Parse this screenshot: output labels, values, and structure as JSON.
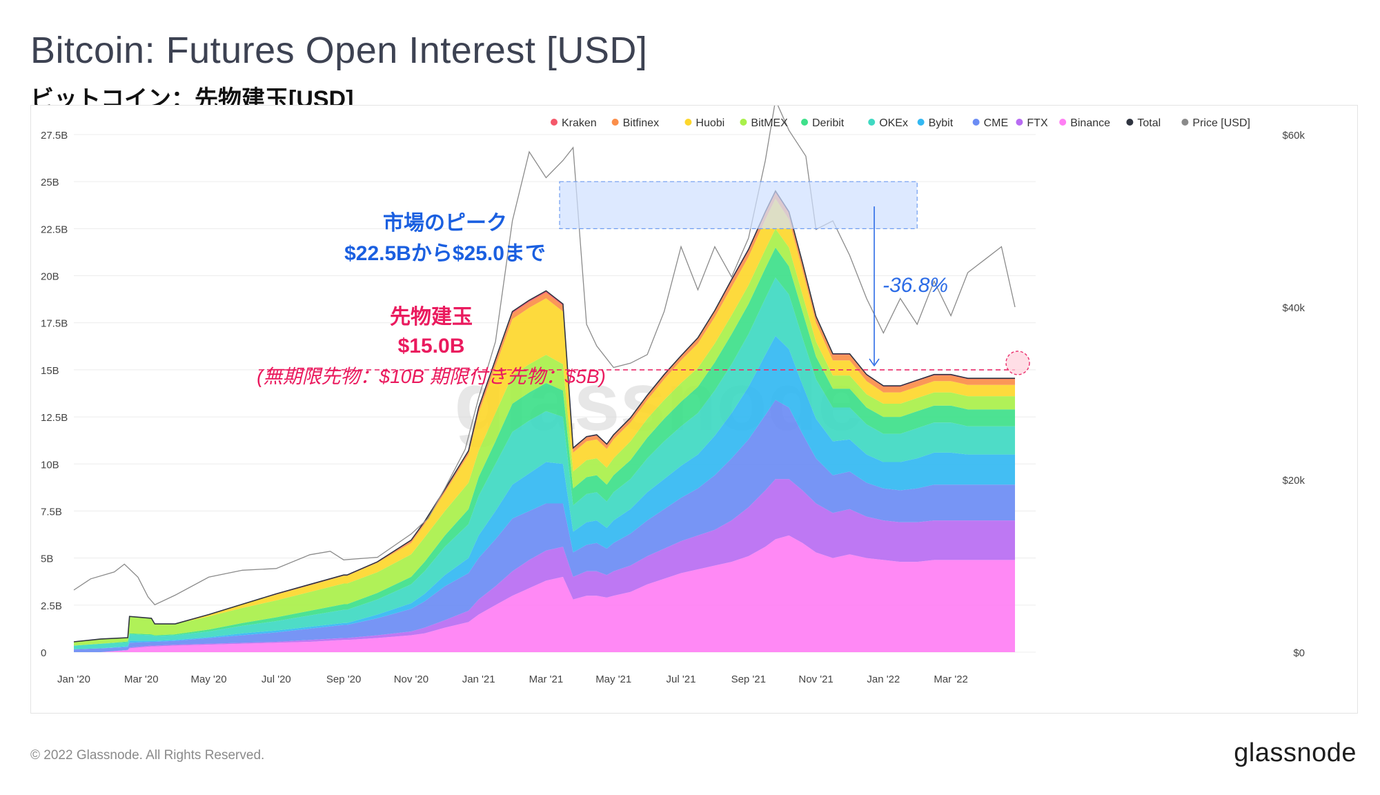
{
  "header": {
    "title": "Bitcoin: Futures Open Interest [USD]",
    "subtitle": "ビットコイン：先物建玉[USD]"
  },
  "footer": {
    "copyright": "© 2022 Glassnode. All Rights Reserved.",
    "logo": "glassnode"
  },
  "watermark": "glassnode",
  "chart_data": {
    "type": "area",
    "stacked": true,
    "title": "Bitcoin: Futures Open Interest [USD]",
    "subtitle": "ビットコイン：先物建玉[USD]",
    "x_ticks": [
      "Jan '20",
      "Mar '20",
      "May '20",
      "Jul '20",
      "Sep '20",
      "Nov '20",
      "Jan '21",
      "Mar '21",
      "May '21",
      "Jul '21",
      "Sep '21",
      "Nov '21",
      "Jan '22",
      "Mar '22"
    ],
    "x_range_months": [
      0,
      27.9
    ],
    "y_left": {
      "ticks": [
        "0",
        "2.5B",
        "5B",
        "7.5B",
        "10B",
        "12.5B",
        "15B",
        "17.5B",
        "20B",
        "22.5B",
        "25B",
        "27.5B"
      ],
      "range": [
        0,
        27.5
      ],
      "unit": "B USD"
    },
    "y_right": {
      "ticks": [
        "$0",
        "$20k",
        "$40k",
        "$60k"
      ],
      "range": [
        0,
        60000
      ],
      "unit": "USD"
    },
    "legend": [
      {
        "name": "Kraken",
        "color": "#f4586a"
      },
      {
        "name": "Bitfinex",
        "color": "#fb8e4a"
      },
      {
        "name": "Huobi",
        "color": "#fdd72c"
      },
      {
        "name": "BitMEX",
        "color": "#a9f04a"
      },
      {
        "name": "Deribit",
        "color": "#3ee08a"
      },
      {
        "name": "OKEx",
        "color": "#3fd9c2"
      },
      {
        "name": "Bybit",
        "color": "#33b8f2"
      },
      {
        "name": "CME",
        "color": "#6b8cf4"
      },
      {
        "name": "FTX",
        "color": "#b86cf2"
      },
      {
        "name": "Binance",
        "color": "#ff7ff4"
      },
      {
        "name": "Total",
        "color": "#2f3440"
      },
      {
        "name": "Price [USD]",
        "color": "#8a8a8a"
      }
    ],
    "x_months": [
      0,
      0.8,
      1.6,
      1.65,
      2.3,
      2.4,
      3,
      4,
      5,
      6,
      7,
      8,
      8.1,
      9,
      10,
      10.4,
      11,
      11.7,
      12,
      12.5,
      13,
      13.5,
      14,
      14.5,
      14.8,
      15.2,
      15.5,
      15.8,
      16,
      16.5,
      17,
      17.5,
      18,
      18.5,
      19,
      19.5,
      20,
      20.5,
      20.8,
      21.2,
      21.6,
      22,
      22.5,
      23,
      23.5,
      24,
      24.5,
      25,
      25.5,
      26,
      26.5,
      27,
      27.5,
      27.9
    ],
    "series": [
      {
        "name": "Binance",
        "values": [
          0,
          0,
          0.1,
          0.2,
          0.3,
          0.3,
          0.35,
          0.4,
          0.45,
          0.5,
          0.55,
          0.65,
          0.65,
          0.75,
          0.9,
          1.0,
          1.3,
          1.6,
          2.0,
          2.5,
          3.0,
          3.4,
          3.8,
          4.0,
          2.8,
          3.0,
          3.0,
          2.9,
          3.0,
          3.2,
          3.6,
          3.9,
          4.2,
          4.4,
          4.6,
          4.8,
          5.1,
          5.6,
          6.0,
          6.2,
          5.8,
          5.3,
          5.0,
          5.2,
          5.0,
          4.9,
          4.8,
          4.8,
          4.9,
          4.9,
          4.9,
          4.9,
          4.9,
          4.9
        ]
      },
      {
        "name": "FTX",
        "values": [
          0,
          0,
          0.02,
          0.05,
          0.05,
          0.05,
          0.05,
          0.05,
          0.05,
          0.05,
          0.1,
          0.1,
          0.1,
          0.15,
          0.2,
          0.3,
          0.4,
          0.6,
          0.8,
          1.0,
          1.3,
          1.5,
          1.6,
          1.6,
          1.2,
          1.3,
          1.3,
          1.2,
          1.3,
          1.4,
          1.5,
          1.6,
          1.7,
          1.8,
          1.9,
          2.2,
          2.6,
          3.0,
          3.2,
          3.0,
          2.8,
          2.6,
          2.4,
          2.4,
          2.2,
          2.1,
          2.1,
          2.1,
          2.1,
          2.1,
          2.1,
          2.1,
          2.1,
          2.1
        ]
      },
      {
        "name": "CME",
        "values": [
          0.15,
          0.2,
          0.15,
          0.25,
          0.2,
          0.2,
          0.2,
          0.3,
          0.4,
          0.5,
          0.6,
          0.7,
          0.7,
          0.9,
          1.2,
          1.4,
          1.8,
          2.0,
          2.2,
          2.5,
          2.8,
          2.6,
          2.5,
          2.3,
          1.3,
          1.4,
          1.5,
          1.4,
          1.5,
          1.7,
          1.9,
          2.1,
          2.3,
          2.5,
          2.9,
          3.3,
          3.6,
          4.0,
          4.2,
          3.8,
          3.0,
          2.4,
          2.0,
          2.0,
          1.8,
          1.7,
          1.7,
          1.8,
          1.9,
          1.9,
          1.9,
          1.9,
          1.9,
          1.9
        ]
      },
      {
        "name": "Bybit",
        "values": [
          0,
          0,
          0.05,
          0.1,
          0.05,
          0.05,
          0.05,
          0.05,
          0.1,
          0.1,
          0.1,
          0.1,
          0.1,
          0.2,
          0.3,
          0.4,
          0.6,
          0.8,
          1.2,
          1.5,
          1.8,
          2.0,
          2.2,
          2.1,
          1.1,
          1.2,
          1.2,
          1.1,
          1.2,
          1.3,
          1.5,
          1.6,
          1.7,
          1.8,
          2.1,
          2.4,
          2.8,
          3.2,
          3.4,
          3.1,
          2.6,
          2.1,
          1.8,
          1.7,
          1.5,
          1.4,
          1.5,
          1.6,
          1.7,
          1.7,
          1.6,
          1.6,
          1.6,
          1.6
        ]
      },
      {
        "name": "OKEx",
        "values": [
          0.2,
          0.25,
          0.2,
          0.35,
          0.3,
          0.25,
          0.25,
          0.3,
          0.4,
          0.5,
          0.6,
          0.7,
          0.7,
          0.8,
          1.0,
          1.2,
          1.5,
          1.8,
          2.1,
          2.5,
          2.8,
          2.8,
          2.7,
          2.5,
          1.4,
          1.5,
          1.5,
          1.4,
          1.5,
          1.6,
          1.8,
          2.0,
          2.1,
          2.2,
          2.4,
          2.6,
          2.8,
          3.0,
          3.1,
          2.9,
          2.5,
          2.1,
          1.8,
          1.7,
          1.6,
          1.5,
          1.5,
          1.6,
          1.6,
          1.6,
          1.5,
          1.5,
          1.5,
          1.5
        ]
      },
      {
        "name": "Deribit",
        "values": [
          0,
          0,
          0.05,
          0.05,
          0.05,
          0.05,
          0.05,
          0.1,
          0.15,
          0.2,
          0.25,
          0.3,
          0.3,
          0.35,
          0.4,
          0.5,
          0.6,
          0.8,
          1.0,
          1.2,
          1.5,
          1.5,
          1.5,
          1.4,
          0.9,
          0.9,
          0.9,
          0.9,
          0.9,
          1.0,
          1.1,
          1.2,
          1.3,
          1.4,
          1.5,
          1.6,
          1.6,
          1.6,
          1.6,
          1.5,
          1.4,
          1.2,
          1.0,
          1.0,
          0.9,
          0.9,
          0.9,
          0.9,
          0.9,
          0.9,
          0.9,
          0.9,
          0.9,
          0.9
        ]
      },
      {
        "name": "BitMEX",
        "values": [
          0.2,
          0.25,
          0.2,
          0.9,
          0.85,
          0.6,
          0.55,
          0.7,
          0.8,
          0.9,
          1.0,
          1.1,
          1.1,
          1.1,
          1.2,
          1.3,
          1.3,
          1.4,
          1.4,
          1.5,
          1.5,
          1.5,
          1.5,
          1.4,
          0.9,
          0.9,
          0.9,
          0.9,
          0.9,
          1.0,
          1.0,
          1.0,
          1.0,
          1.0,
          1.0,
          1.0,
          1.0,
          1.0,
          1.0,
          1.0,
          0.9,
          0.8,
          0.7,
          0.7,
          0.7,
          0.7,
          0.7,
          0.7,
          0.7,
          0.7,
          0.7,
          0.7,
          0.7,
          0.7
        ]
      },
      {
        "name": "Huobi",
        "values": [
          0,
          0,
          0,
          0,
          0,
          0,
          0,
          0.1,
          0.2,
          0.3,
          0.35,
          0.4,
          0.4,
          0.5,
          0.6,
          0.7,
          1.0,
          1.5,
          2.0,
          2.5,
          3.0,
          3.0,
          3.0,
          2.8,
          1.0,
          1.0,
          1.0,
          1.0,
          1.0,
          1.0,
          1.0,
          1.1,
          1.2,
          1.3,
          1.4,
          1.5,
          1.5,
          1.6,
          1.6,
          1.5,
          1.3,
          1.0,
          0.8,
          0.8,
          0.7,
          0.6,
          0.6,
          0.6,
          0.6,
          0.6,
          0.6,
          0.6,
          0.6,
          0.6
        ]
      },
      {
        "name": "Bitfinex",
        "values": [
          0,
          0,
          0,
          0,
          0,
          0,
          0,
          0,
          0,
          0.05,
          0.05,
          0.05,
          0.05,
          0.05,
          0.1,
          0.1,
          0.1,
          0.15,
          0.2,
          0.25,
          0.3,
          0.3,
          0.3,
          0.3,
          0.2,
          0.2,
          0.2,
          0.2,
          0.2,
          0.2,
          0.2,
          0.2,
          0.2,
          0.25,
          0.3,
          0.3,
          0.3,
          0.3,
          0.3,
          0.3,
          0.3,
          0.3,
          0.3,
          0.3,
          0.3,
          0.3,
          0.3,
          0.3,
          0.3,
          0.3,
          0.3,
          0.3,
          0.3,
          0.3
        ]
      },
      {
        "name": "Kraken",
        "values": [
          0,
          0,
          0,
          0,
          0,
          0,
          0,
          0,
          0,
          0,
          0,
          0,
          0,
          0,
          0.05,
          0.05,
          0.05,
          0.05,
          0.1,
          0.1,
          0.1,
          0.1,
          0.1,
          0.1,
          0.05,
          0.05,
          0.05,
          0.05,
          0.05,
          0.05,
          0.05,
          0.05,
          0.05,
          0.05,
          0.05,
          0.1,
          0.1,
          0.1,
          0.1,
          0.1,
          0.1,
          0.05,
          0.05,
          0.05,
          0.05,
          0.05,
          0.05,
          0.05,
          0.05,
          0.05,
          0.05,
          0.05,
          0.05,
          0.05
        ]
      }
    ],
    "price_usd": {
      "x_months": [
        0,
        0.5,
        1.2,
        1.5,
        1.9,
        2.2,
        2.4,
        3,
        4,
        5,
        6,
        7,
        7.6,
        8,
        9,
        10,
        10.5,
        11,
        11.6,
        12,
        12.5,
        13,
        13.5,
        14,
        14.5,
        14.8,
        15.2,
        15.5,
        16,
        16.5,
        17,
        17.5,
        18,
        18.5,
        19,
        19.5,
        20,
        20.5,
        20.8,
        21.2,
        21.7,
        22,
        22.5,
        23,
        23.5,
        24,
        24.5,
        25,
        25.5,
        26,
        26.5,
        27,
        27.5,
        27.9
      ],
      "values": [
        7200,
        8500,
        9300,
        10200,
        8700,
        6400,
        5500,
        6600,
        8700,
        9500,
        9700,
        11300,
        11700,
        10700,
        11000,
        13700,
        15500,
        19000,
        23500,
        29500,
        36000,
        50000,
        58000,
        55000,
        57000,
        58500,
        38000,
        35500,
        33000,
        33500,
        34500,
        39500,
        47000,
        42000,
        47000,
        43500,
        48000,
        57000,
        64000,
        60500,
        57500,
        49000,
        50000,
        46000,
        41000,
        37000,
        41000,
        38000,
        43000,
        39000,
        44000,
        45500,
        47000,
        40000
      ]
    },
    "annotations": {
      "peak_label_line1": "市場のピーク",
      "peak_label_line2": "$22.5Bから$25.0まで",
      "peak_band": [
        22.5,
        25.0
      ],
      "drop_label": "-36.8%",
      "oi_label_line1": "先物建玉",
      "oi_label_line2": "$15.0B",
      "oi_label_line3": "(無期限先物：$10B 期限付き先物：$5B)",
      "current_oi": 15.0
    }
  }
}
